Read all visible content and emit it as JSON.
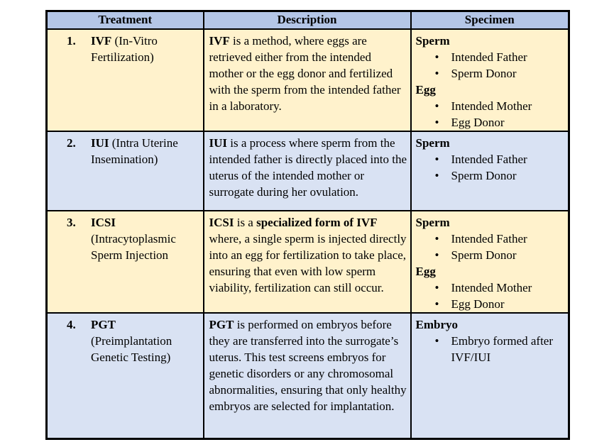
{
  "colors": {
    "page_bg": "#ffffff",
    "header_bg": "#b4c6e7",
    "row_cream_bg": "#fff2cc",
    "row_blue_bg": "#d9e2f3",
    "border_color": "#000000",
    "text_color": "#000000"
  },
  "icons": {
    "bullet": "•"
  },
  "table": {
    "headers": [
      "Treatment",
      "Description",
      "Specimen"
    ],
    "rows": [
      {
        "number": "1.",
        "bg": "cream",
        "treatment_runs": [
          {
            "t": "IVF",
            "b": true
          },
          {
            "t": " (In-Vitro Fertilization)",
            "b": false
          }
        ],
        "description_runs": [
          {
            "t": "IVF",
            "b": true
          },
          {
            "t": " is a method, where eggs are retrieved either from the intended mother or the egg donor and fertilized with the sperm from the intended father in a laboratory.",
            "b": false
          }
        ],
        "specimen_groups": [
          {
            "label": "Sperm",
            "items": [
              "Intended Father",
              "Sperm Donor"
            ]
          },
          {
            "label": "Egg",
            "items": [
              "Intended Mother",
              "Egg Donor"
            ]
          }
        ]
      },
      {
        "number": "2.",
        "bg": "blue",
        "treatment_runs": [
          {
            "t": "IUI",
            "b": true
          },
          {
            "t": " (Intra Uterine Insemination)",
            "b": false
          }
        ],
        "description_runs": [
          {
            "t": "IUI",
            "b": true
          },
          {
            "t": " is a process where sperm from the intended father is directly placed into the uterus of the intended mother or surrogate during her ovulation.",
            "b": false
          }
        ],
        "specimen_groups": [
          {
            "label": "Sperm",
            "items": [
              "Intended Father",
              "Sperm Donor"
            ]
          }
        ]
      },
      {
        "number": "3.",
        "bg": "cream",
        "treatment_runs": [
          {
            "t": "ICSI",
            "b": true
          },
          {
            "t": " (Intracytoplasmic Sperm Injection",
            "b": false
          }
        ],
        "description_runs": [
          {
            "t": "ICSI",
            "b": true
          },
          {
            "t": " is a ",
            "b": false
          },
          {
            "t": "specialized form of IVF",
            "b": true
          },
          {
            "t": " where, a single sperm is injected directly into an egg for fertilization to take place, ensuring that even with low sperm viability, fertilization can still occur.",
            "b": false
          }
        ],
        "specimen_groups": [
          {
            "label": "Sperm",
            "items": [
              "Intended Father",
              "Sperm Donor"
            ]
          },
          {
            "label": "Egg",
            "items": [
              "Intended Mother",
              "Egg Donor"
            ]
          }
        ]
      },
      {
        "number": "4.",
        "bg": "blue",
        "treatment_runs": [
          {
            "t": "PGT",
            "b": true
          },
          {
            "t": " (Preimplantation Genetic Testing)",
            "b": false
          }
        ],
        "description_runs": [
          {
            "t": "PGT",
            "b": true
          },
          {
            "t": " is performed on embryos before they are transferred into the surrogate’s uterus. This test screens embryos for genetic disorders or any chromosomal abnormalities, ensuring that only healthy embryos are selected for implantation.",
            "b": false
          }
        ],
        "specimen_groups": [
          {
            "label": "Embryo",
            "items": [
              "Embryo formed after IVF/IUI"
            ]
          }
        ]
      }
    ]
  }
}
